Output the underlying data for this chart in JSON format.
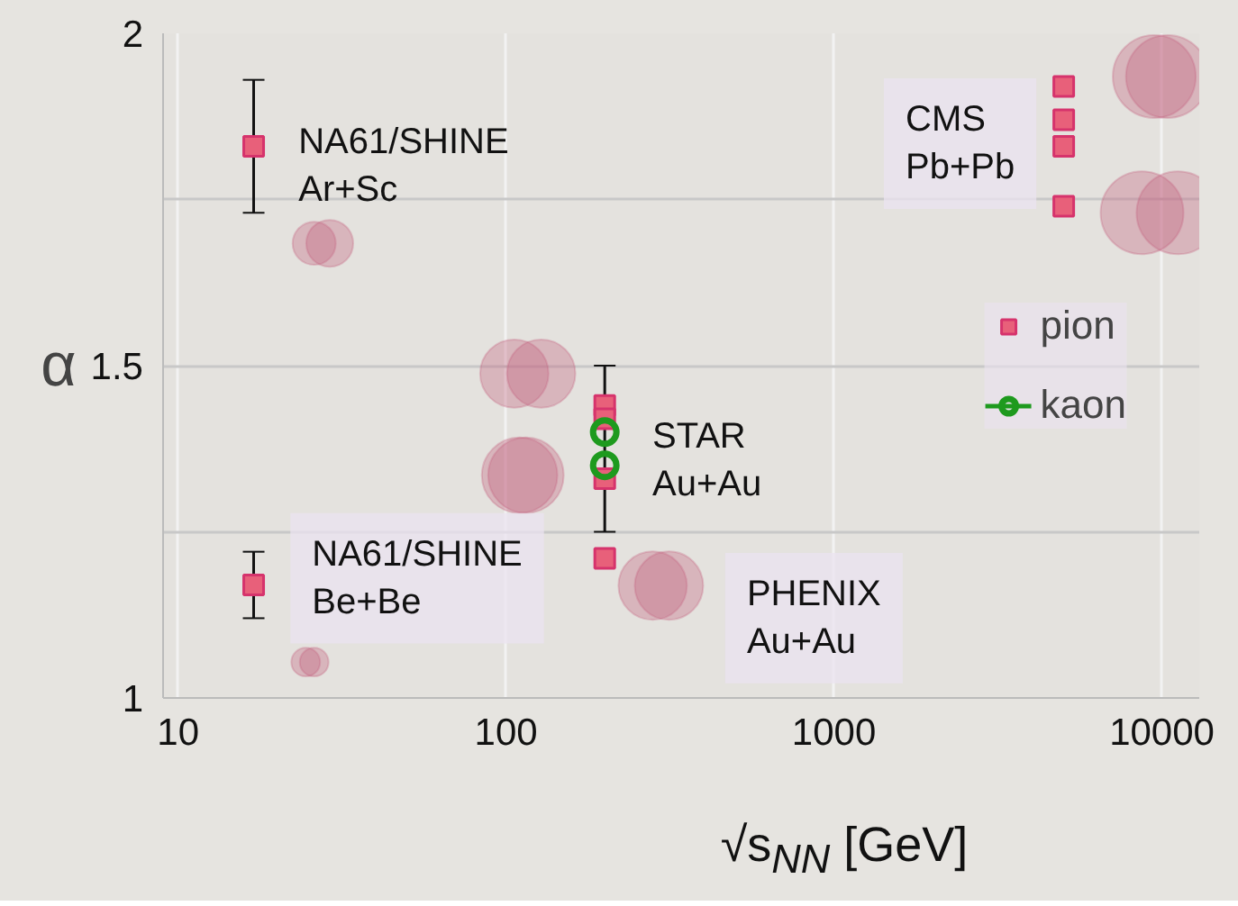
{
  "chart_data": {
    "type": "scatter",
    "xlabel": "√s$_{NN}$ [GeV]",
    "ylabel": "α",
    "log": "x",
    "xlim": [
      9,
      13000
    ],
    "xticks": [
      10,
      100,
      1000,
      10000
    ],
    "ylim": [
      1,
      2
    ],
    "yticks": [
      1,
      {
        "value": 1.25,
        "label": null
      },
      1.5,
      {
        "value": 1.75,
        "label": null
      },
      2
    ],
    "grid": true,
    "legend": "right",
    "series": [
      {
        "type": "bubble",
        "color": "#c4607e",
        "x": [
          26,
          29,
          106,
          128,
          110,
          115,
          280,
          314,
          24.5,
          26,
          9480,
          10400,
          8700,
          11200
        ],
        "values": [
          1.684,
          1.684,
          1.488,
          1.488,
          1.335,
          1.335,
          1.169,
          1.169,
          1.054,
          1.054,
          1.935,
          1.935,
          1.73,
          1.73
        ],
        "sizes": [
          0.27,
          0.32,
          0.68,
          0.68,
          0.83,
          0.83,
          0.68,
          0.68,
          0.12,
          0.12,
          1,
          1,
          1,
          1
        ]
      },
      {
        "name": "pion",
        "marker": "square",
        "color": "#e8607a",
        "x": [
          17,
          17,
          200,
          200,
          200,
          200,
          5020,
          5020,
          5020,
          5020
        ],
        "values": [
          1.83,
          1.17,
          1.44,
          1.42,
          1.33,
          1.21,
          1.92,
          1.87,
          1.83,
          1.74
        ],
        "errors": [
          [
            1.73,
            1.93
          ],
          [
            1.12,
            1.22
          ],
          null,
          null,
          null,
          null,
          null,
          null,
          null,
          null
        ]
      },
      {
        "name": "kaon",
        "marker": "circle",
        "color": "#1e9a1e",
        "x": [
          200,
          200
        ],
        "values": [
          1.4,
          1.35
        ],
        "errors": [
          null,
          [
            1.25,
            1.5
          ]
        ]
      }
    ],
    "annotations": [
      "NA61/SHINE\nAr+Sc",
      "NA61/SHINE\nBe+Be",
      "STAR\nAu+Au",
      "PHENIX\nAu+Au",
      "CMS\nPb+Pb"
    ]
  }
}
